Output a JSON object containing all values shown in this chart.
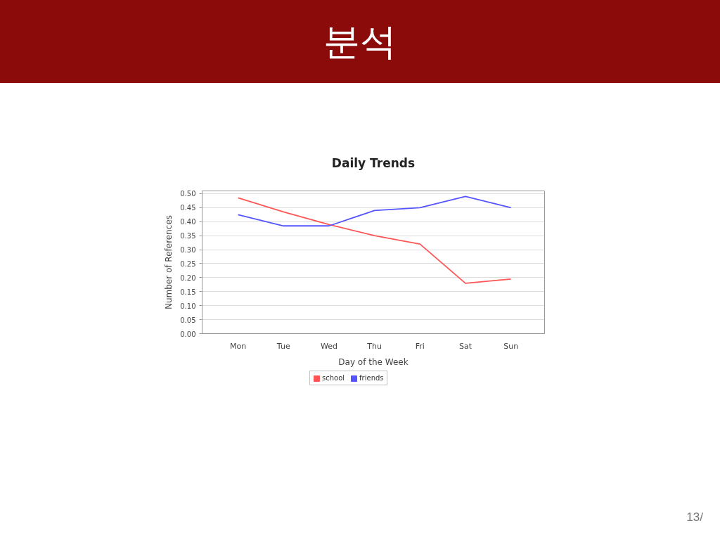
{
  "chart_data": {
    "type": "line",
    "title": "분석",
    "subtitle": "Daily Trends",
    "xlabel": "Day of the Week",
    "ylabel": "Number of References",
    "categories": [
      "Mon",
      "Tue",
      "Wed",
      "Thu",
      "Fri",
      "Sat",
      "Sun"
    ],
    "series": [
      {
        "name": "school",
        "color": "#ff5555",
        "values": [
          0.485,
          0.435,
          0.39,
          0.35,
          0.32,
          0.18,
          0.195
        ]
      },
      {
        "name": "friends",
        "color": "#5555ff",
        "values": [
          0.425,
          0.385,
          0.385,
          0.44,
          0.45,
          0.49,
          0.45
        ]
      }
    ],
    "ylim": [
      0,
      0.51
    ],
    "yticks": [
      {
        "value": 0,
        "label": "0.00"
      },
      {
        "value": 0.05,
        "label": "0.05"
      },
      {
        "value": 0.1,
        "label": "0.10"
      },
      {
        "value": 0.15,
        "label": "0.15"
      },
      {
        "value": 0.2,
        "label": "0.20"
      },
      {
        "value": 0.25,
        "label": "0.25"
      },
      {
        "value": 0.3,
        "label": "0.30"
      },
      {
        "value": 0.35,
        "label": "0.35"
      },
      {
        "value": 0.4,
        "label": "0.40"
      },
      {
        "value": 0.45,
        "label": "0.45"
      },
      {
        "value": 0.5,
        "label": "0.50"
      }
    ],
    "grid": "y",
    "legend": "bottom",
    "line_style": "solid",
    "annotations": [
      "13/"
    ]
  }
}
